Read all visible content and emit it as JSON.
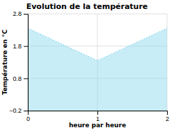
{
  "chart_data": {
    "type": "area",
    "title": "Evolution de la température",
    "xlabel": "heure par heure",
    "ylabel": "Température en °C",
    "x": [
      0,
      1,
      2
    ],
    "values": [
      2.35,
      1.35,
      2.35
    ],
    "xlim": [
      0,
      2
    ],
    "ylim": [
      -0.2,
      2.8
    ],
    "xticks": [
      0,
      1,
      2
    ],
    "yticks": [
      -0.2,
      0.8,
      1.8,
      2.8
    ],
    "color": "#88d8ee",
    "line_style": "dotted",
    "grid": true
  }
}
